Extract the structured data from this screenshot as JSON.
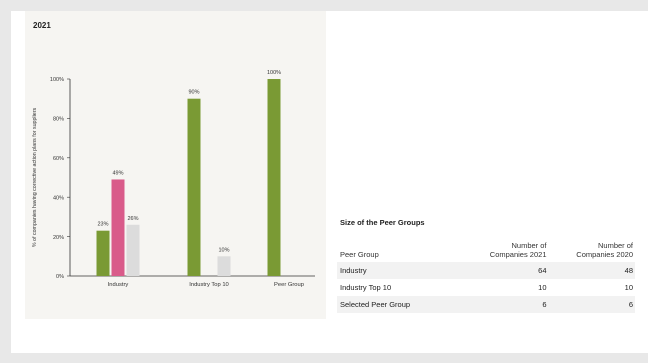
{
  "chart_data": {
    "type": "bar",
    "title": "2021",
    "ylabel": "% of companies having corrective action plans for suppliers",
    "xlabel": "",
    "ylim": [
      0,
      100
    ],
    "yticks": [
      "0%",
      "20%",
      "40%",
      "60%",
      "80%",
      "100%"
    ],
    "ytick_values": [
      0,
      20,
      40,
      60,
      80,
      100
    ],
    "grid": false,
    "categories": [
      "Industry",
      "Industry Top 10",
      "Peer Group"
    ],
    "series": [
      {
        "color": "#7a9a34",
        "values": [
          23,
          90,
          100
        ],
        "labels": [
          "23%",
          "90%",
          "100%"
        ]
      },
      {
        "color": "#d95b8a",
        "values": [
          49,
          null,
          null
        ],
        "labels": [
          "49%",
          "",
          ""
        ]
      },
      {
        "color": "#dcdcdc",
        "values": [
          26,
          10,
          null
        ],
        "labels": [
          "26%",
          "10%",
          ""
        ]
      }
    ]
  },
  "peer_groups": {
    "title": "Size of the Peer Groups",
    "headers": [
      "Peer Group",
      "Number of Companies 2021",
      "Number of Companies 2020"
    ],
    "header_lines": [
      [
        "Peer Group"
      ],
      [
        "Number of",
        "Companies 2021"
      ],
      [
        "Number of",
        "Companies 2020"
      ]
    ],
    "rows": [
      {
        "name": "Industry",
        "c2021": "64",
        "c2020": "48"
      },
      {
        "name": "Industry Top 10",
        "c2021": "10",
        "c2020": "10"
      },
      {
        "name": "Selected Peer Group",
        "c2021": "6",
        "c2020": "6"
      }
    ]
  }
}
